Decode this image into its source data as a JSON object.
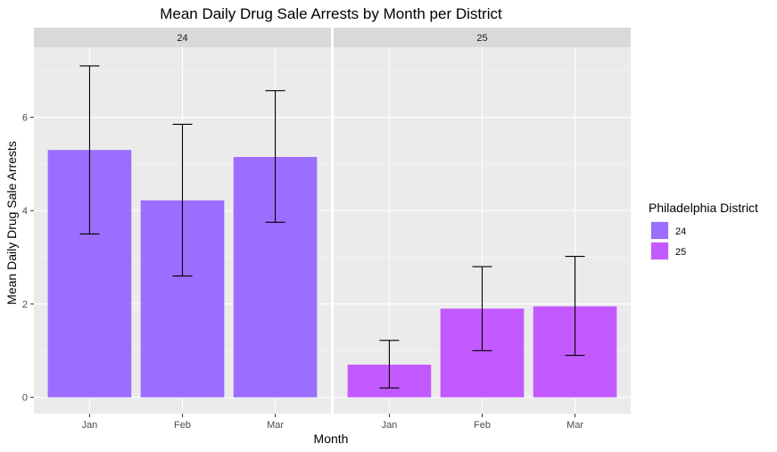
{
  "chart_data": {
    "type": "bar",
    "title": "Mean Daily Drug Sale Arrests by Month per District",
    "xlabel": "Month",
    "ylabel": "Mean Daily Drug Sale Arrests",
    "categories": [
      "Jan",
      "Feb",
      "Mar"
    ],
    "ylim": [
      -0.35,
      7.5
    ],
    "y_ticks": [
      0,
      2,
      4,
      6
    ],
    "grid": true,
    "facets": [
      {
        "label": "24",
        "color": "#9B6EFF",
        "values": [
          5.3,
          4.22,
          5.15
        ],
        "error_low": [
          3.5,
          2.6,
          3.75
        ],
        "error_high": [
          7.1,
          5.85,
          6.57
        ]
      },
      {
        "label": "25",
        "color": "#C35AFF",
        "values": [
          0.7,
          1.9,
          1.95
        ],
        "error_low": [
          0.2,
          1.0,
          0.9
        ],
        "error_high": [
          1.22,
          2.8,
          3.02
        ]
      }
    ],
    "legend": {
      "title": "Philadelphia District",
      "position": "right",
      "entries": [
        {
          "label": "24",
          "color": "#9B6EFF"
        },
        {
          "label": "25",
          "color": "#C35AFF"
        }
      ]
    }
  }
}
